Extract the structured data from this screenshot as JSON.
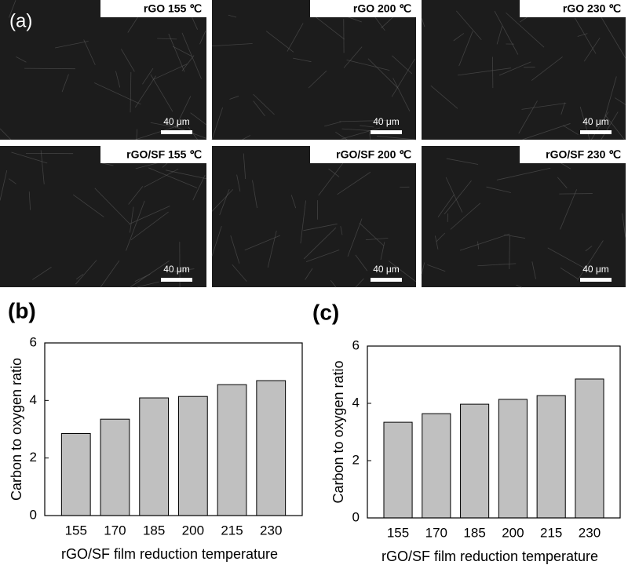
{
  "panel_label": "(a)",
  "sem_images": [
    {
      "label": "rGO 155 ℃",
      "scale": "40 μm"
    },
    {
      "label": "rGO 200 ℃",
      "scale": "40 μm"
    },
    {
      "label": "rGO 230 ℃",
      "scale": "40 μm"
    },
    {
      "label": "rGO/SF 155 ℃",
      "scale": "40 μm"
    },
    {
      "label": "rGO/SF 200 ℃",
      "scale": "40 μm"
    },
    {
      "label": "rGO/SF 230 ℃",
      "scale": "40 μm"
    }
  ],
  "chart_data": [
    {
      "type": "bar",
      "panel_label": "(b)",
      "x_label": "rGO/SF film reduction temperature",
      "y_label": "Carbon to oxygen ratio",
      "categories": [
        "155",
        "170",
        "185",
        "200",
        "215",
        "230"
      ],
      "values": [
        2.85,
        3.35,
        4.09,
        4.14,
        4.55,
        4.69
      ],
      "color": "#c0c0c0",
      "ylim": [
        0,
        6
      ],
      "yticks": [
        0,
        2,
        4,
        6
      ]
    },
    {
      "type": "bar",
      "panel_label": "(c)",
      "x_label": "rGO/SF film reduction temperature",
      "y_label": "Carbon to oxygen ratio",
      "categories": [
        "155",
        "170",
        "185",
        "200",
        "215",
        "230"
      ],
      "values": [
        3.34,
        3.64,
        3.97,
        4.14,
        4.27,
        4.85
      ],
      "color": "#c0c0c0",
      "ylim": [
        0,
        6
      ],
      "yticks": [
        0,
        2,
        4,
        6
      ]
    }
  ]
}
